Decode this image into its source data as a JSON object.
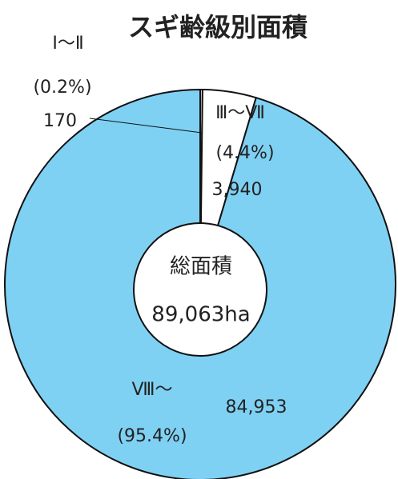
{
  "chart_data": {
    "type": "donut",
    "title": "スギ齢級別面積",
    "categories": [
      "Ⅰ〜Ⅱ",
      "Ⅲ〜Ⅶ",
      "Ⅷ〜"
    ],
    "values": [
      170,
      3940,
      84953
    ],
    "value_labels": [
      "170",
      "3,940",
      "84,953"
    ],
    "percent_labels": [
      "(0.2%)",
      "(4.4%)",
      "(95.4%)"
    ],
    "colors": [
      "#ffffff",
      "#ffffff",
      "#7fd1f3"
    ],
    "center_label": [
      "総面積",
      "89,063ha"
    ]
  }
}
